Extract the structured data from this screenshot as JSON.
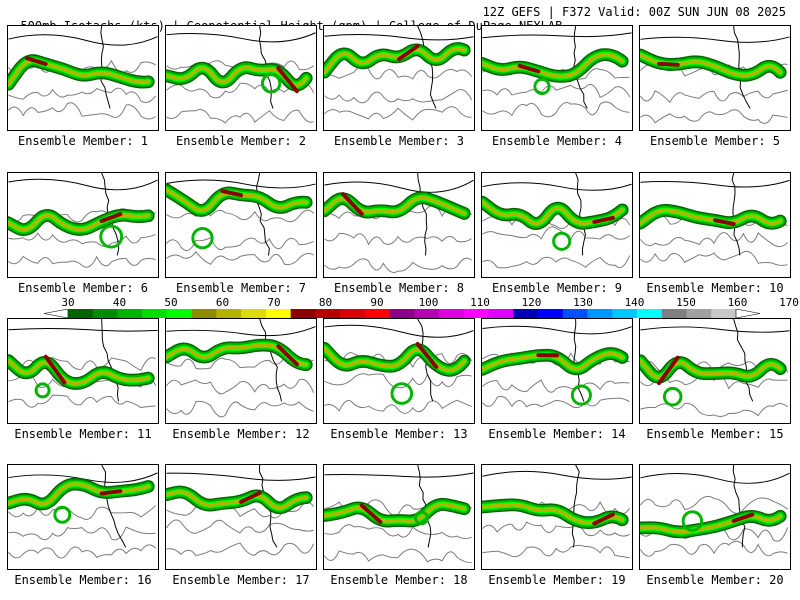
{
  "header": {
    "title_left": "500mb Isotachs (kts) | Geopotential Height (gpm) | College of DuPage NEXLAB",
    "title_right": "12Z GEFS | F372 Valid: 00Z SUN JUN 08 2025"
  },
  "panels": [
    {
      "label": "Ensemble Member: 1"
    },
    {
      "label": "Ensemble Member: 2"
    },
    {
      "label": "Ensemble Member: 3"
    },
    {
      "label": "Ensemble Member: 4"
    },
    {
      "label": "Ensemble Member: 5"
    },
    {
      "label": "Ensemble Member: 6"
    },
    {
      "label": "Ensemble Member: 7"
    },
    {
      "label": "Ensemble Member: 8"
    },
    {
      "label": "Ensemble Member: 9"
    },
    {
      "label": "Ensemble Member: 10"
    },
    {
      "label": "Ensemble Member: 11"
    },
    {
      "label": "Ensemble Member: 12"
    },
    {
      "label": "Ensemble Member: 13"
    },
    {
      "label": "Ensemble Member: 14"
    },
    {
      "label": "Ensemble Member: 15"
    },
    {
      "label": "Ensemble Member: 16"
    },
    {
      "label": "Ensemble Member: 17"
    },
    {
      "label": "Ensemble Member: 18"
    },
    {
      "label": "Ensemble Member: 19"
    },
    {
      "label": "Ensemble Member: 20"
    }
  ],
  "colorbar": {
    "labels": [
      "30",
      "40",
      "50",
      "60",
      "70",
      "80",
      "90",
      "100",
      "110",
      "120",
      "130",
      "140",
      "150",
      "160",
      "170"
    ],
    "colors": [
      "#006400",
      "#008c00",
      "#00b400",
      "#00dc00",
      "#00ff00",
      "#8c8c00",
      "#b4b400",
      "#dcdc00",
      "#ffff00",
      "#8c0000",
      "#b40000",
      "#dc0000",
      "#ff0000",
      "#8c008c",
      "#b400b4",
      "#dc00dc",
      "#ff00ff",
      "#dc00ff",
      "#0000b4",
      "#0000ff",
      "#0050ff",
      "#0096ff",
      "#00c8ff",
      "#00ffff",
      "#808080",
      "#a0a0a0",
      "#c8c8c8"
    ]
  }
}
